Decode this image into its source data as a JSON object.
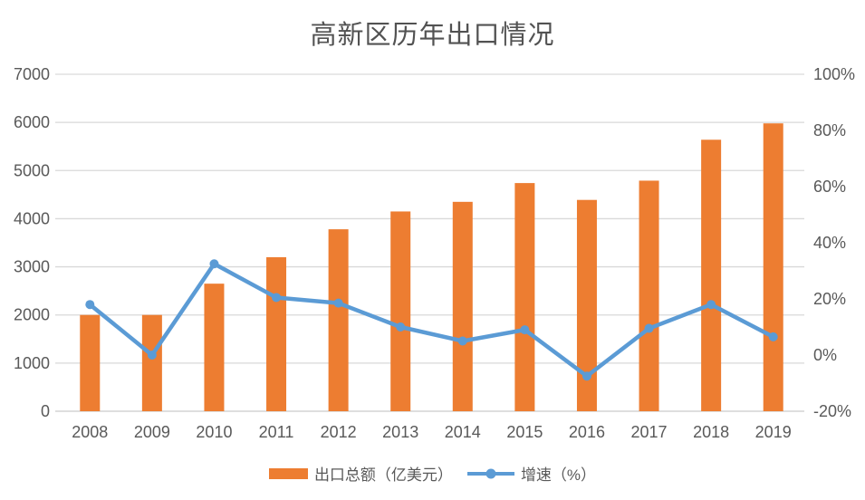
{
  "title": "高新区历年出口情况",
  "colors": {
    "bar": "#ED7D31",
    "line": "#5B9BD5",
    "grid": "#D9D9D9",
    "axis_line": "#C9C9C9",
    "text": "#595959",
    "title_text": "#525252",
    "background": "#FFFFFF"
  },
  "chart_data": {
    "type": "combo (bar + line)",
    "title": "高新区历年出口情况",
    "categories": [
      "2008",
      "2009",
      "2010",
      "2011",
      "2012",
      "2013",
      "2014",
      "2015",
      "2016",
      "2017",
      "2018",
      "2019"
    ],
    "series": [
      {
        "name": "出口总额（亿美元）",
        "type": "bar",
        "axis": "left",
        "color": "#ED7D31",
        "values": [
          2000,
          2000,
          2650,
          3200,
          3780,
          4150,
          4350,
          4740,
          4390,
          4790,
          5640,
          5980
        ]
      },
      {
        "name": "增速（%）",
        "type": "line",
        "axis": "right",
        "color": "#5B9BD5",
        "values": [
          18,
          0,
          32.5,
          20.5,
          18.5,
          10,
          5,
          9,
          -7.5,
          9.5,
          18,
          6.5
        ]
      }
    ],
    "left_axis": {
      "min": 0,
      "max": 7000,
      "step": 1000,
      "tick_labels": [
        "0",
        "1000",
        "2000",
        "3000",
        "4000",
        "5000",
        "6000",
        "7000"
      ]
    },
    "right_axis": {
      "min": -20,
      "max": 100,
      "step": 20,
      "tick_labels": [
        "-20%",
        "0%",
        "20%",
        "40%",
        "60%",
        "80%",
        "100%"
      ]
    },
    "grid": true,
    "legend_position": "bottom"
  }
}
